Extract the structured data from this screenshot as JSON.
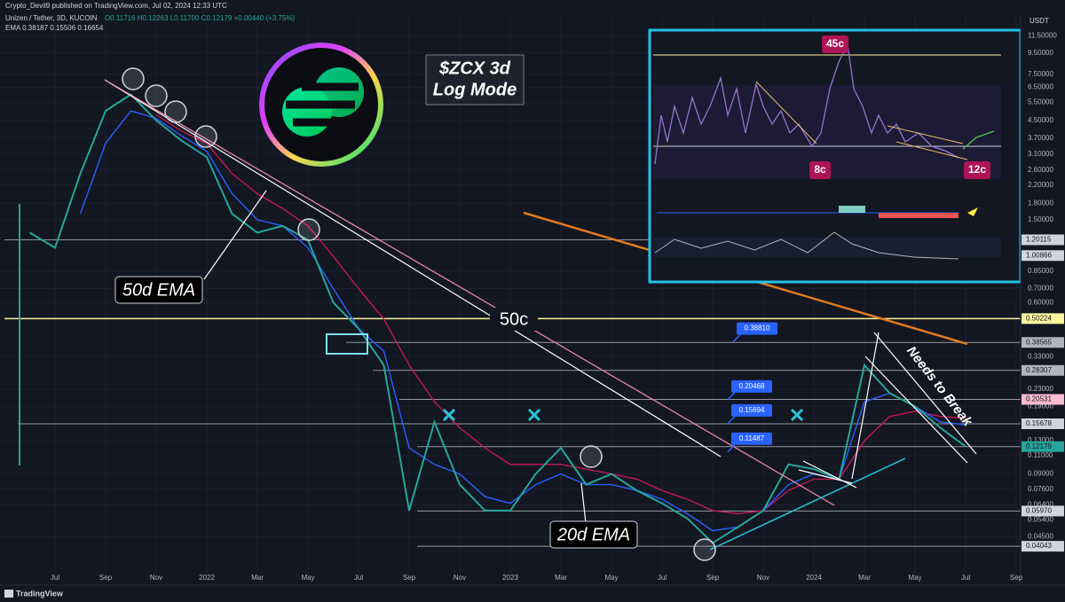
{
  "chart_data": {
    "type": "line",
    "publisher": "Crypto_Devil9 published on TradingView.com, Jul 02, 2024 12:33 UTC",
    "symbol": "Unizen / Tether, 3D, KUCOIN",
    "ohlc": "O0.11716 H0.12263 L0.11700 C0.12179 +0.00440 (+3.75%)",
    "ema_legend": "EMA 0.38187 0.15506 0.16654",
    "currency": "USDT",
    "brand": "TradingView",
    "title": "$ZCX 3d",
    "subtitle": "Log Mode",
    "annotations": {
      "ema50": "50d EMA",
      "ema20": "20d EMA",
      "fifty": "50c",
      "breakout": "Needs to Break"
    },
    "inset_labels": {
      "high": "45c",
      "low": "8c",
      "now": "12c"
    },
    "log_scale": true,
    "grid": true,
    "categories": [
      null,
      "Jul",
      null,
      "Sep",
      null,
      "Nov",
      null,
      "2022",
      null,
      "Mar",
      null,
      "May",
      null,
      "Jul",
      null,
      "Sep",
      null,
      "Nov",
      null,
      "2023",
      null,
      "Mar",
      null,
      "May",
      null,
      "Jul",
      null,
      "Sep",
      null,
      "Nov",
      null,
      "2024",
      null,
      "Mar",
      null,
      "May",
      null,
      "Jul",
      null,
      "Sep"
    ],
    "series": [
      {
        "color": "#26a69a",
        "values": [
          1.3,
          1.1,
          2.5,
          5.0,
          6.0,
          4.5,
          3.6,
          3.0,
          1.6,
          1.3,
          1.4,
          1.2,
          0.6,
          0.45,
          0.3,
          0.06,
          0.16,
          0.08,
          0.06,
          0.06,
          0.09,
          0.12,
          0.08,
          0.09,
          0.075,
          0.065,
          0.055,
          0.042,
          0.05,
          0.06,
          0.1,
          0.095,
          0.085,
          0.3,
          0.22,
          0.19,
          0.15,
          0.12179,
          null,
          null
        ]
      },
      {
        "color": "#2962ff",
        "values": [
          null,
          null,
          1.6,
          3.5,
          5.0,
          4.6,
          3.8,
          3.2,
          2.0,
          1.5,
          1.4,
          1.1,
          0.7,
          0.45,
          0.35,
          0.12,
          0.1,
          0.09,
          0.07,
          0.065,
          0.08,
          0.09,
          0.08,
          0.08,
          0.075,
          0.068,
          0.058,
          0.048,
          0.05,
          0.06,
          0.08,
          0.09,
          0.085,
          0.2,
          0.22,
          0.19,
          0.16,
          0.15506,
          null,
          null
        ]
      },
      {
        "color": "#c2185b",
        "values": [
          null,
          null,
          null,
          null,
          null,
          4.8,
          4.0,
          3.5,
          2.5,
          2.0,
          1.7,
          1.4,
          1.0,
          0.7,
          0.5,
          0.3,
          0.2,
          0.15,
          0.12,
          0.1,
          0.1,
          0.1,
          0.095,
          0.09,
          0.085,
          0.075,
          0.068,
          0.06,
          0.058,
          0.06,
          0.075,
          0.085,
          0.085,
          0.13,
          0.17,
          0.18,
          0.17,
          0.16654,
          null,
          null
        ]
      }
    ],
    "ylim": [
      0.029,
      14.3
    ],
    "yticks": [
      {
        "value": 11.5,
        "label": "11.50000"
      },
      {
        "value": 9.5,
        "label": "9.50000"
      },
      {
        "value": 7.5,
        "label": "7.50000"
      },
      {
        "value": 6.5,
        "label": "6.50000"
      },
      {
        "value": 5.5,
        "label": "5.50000"
      },
      {
        "value": 4.5,
        "label": "4.50000"
      },
      {
        "value": 3.7,
        "label": "3.70000"
      },
      {
        "value": 3.1,
        "label": "3.10000"
      },
      {
        "value": 2.6,
        "label": "2.60000"
      },
      {
        "value": 2.2,
        "label": "2.20000"
      },
      {
        "value": 1.8,
        "label": "1.80000"
      },
      {
        "value": 1.5,
        "label": "1.50000"
      },
      {
        "value": 0.85,
        "label": "0.85000"
      },
      {
        "value": 0.7,
        "label": "0.70000"
      },
      {
        "value": 0.6,
        "label": "0.60000"
      },
      {
        "value": 0.33,
        "label": "0.33000"
      },
      {
        "value": 0.23,
        "label": "0.23000"
      },
      {
        "value": 0.19,
        "label": "0.19000"
      },
      {
        "value": 0.13,
        "label": "0.13000"
      },
      {
        "value": 0.11,
        "label": "0.11000"
      },
      {
        "value": 0.09,
        "label": "0.09000"
      },
      {
        "value": 0.076,
        "label": "0.07600"
      },
      {
        "value": 0.064,
        "label": "0.06400"
      },
      {
        "value": 0.054,
        "label": "0.05400"
      },
      {
        "value": 0.045,
        "label": "0.04500"
      }
    ],
    "levels": [
      {
        "value": 1.20115,
        "label": "1.20115",
        "color": "#d1d4dc"
      },
      {
        "value": 1.00866,
        "label": "1.00866",
        "color": "#d1d4dc"
      },
      {
        "value": 0.50224,
        "label": "0.50224",
        "color": "#fff59d"
      },
      {
        "value": 0.38565,
        "label": "0.38565",
        "color": "#b2b5be"
      },
      {
        "value": 0.28307,
        "label": "0.28307",
        "color": "#b2b5be"
      },
      {
        "value": 0.20531,
        "label": "0.20531",
        "color": "#f8bbd0"
      },
      {
        "value": 0.15678,
        "label": "0.15678",
        "color": "#d1d4dc"
      },
      {
        "value": 0.12179,
        "label": "0.12179",
        "color": "#26a69a"
      },
      {
        "value": 0.0597,
        "label": "0.05970",
        "color": "#d1d4dc"
      },
      {
        "value": 0.04043,
        "label": "0.04043",
        "color": "#d1d4dc"
      }
    ],
    "callouts": [
      {
        "value": 0.3881,
        "label": "0.38810"
      },
      {
        "value": 0.20468,
        "label": "0.20468"
      },
      {
        "value": 0.15694,
        "label": "0.15694"
      },
      {
        "value": 0.11487,
        "label": "0.11487"
      }
    ]
  }
}
